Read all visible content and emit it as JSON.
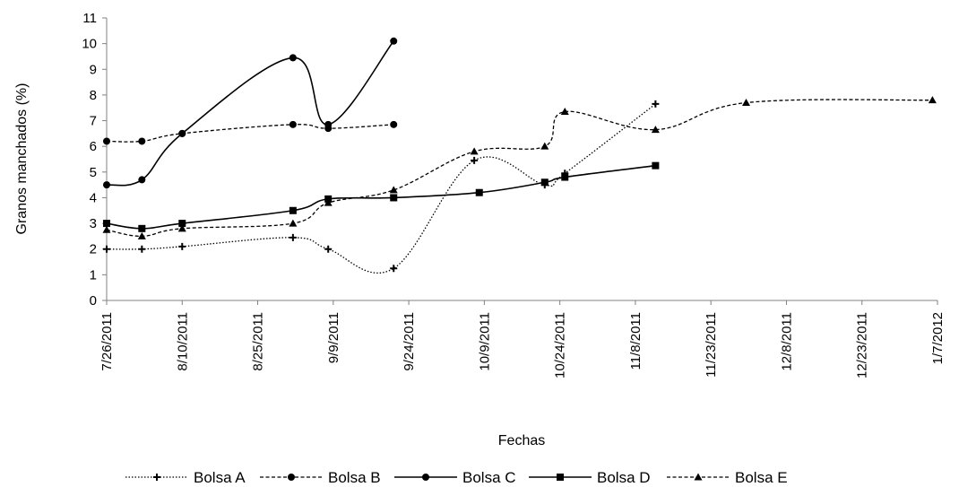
{
  "chart_data": {
    "type": "line",
    "title": "",
    "xlabel": "Fechas",
    "ylabel": "Granos manchados (%)",
    "x_type": "date",
    "xlim": [
      "2011-07-26",
      "2012-01-07"
    ],
    "ylim": [
      0,
      11
    ],
    "x_tick_values": [
      "2011-07-26",
      "2011-08-10",
      "2011-08-25",
      "2011-09-09",
      "2011-09-24",
      "2011-10-09",
      "2011-10-24",
      "2011-11-08",
      "2011-11-23",
      "2011-12-08",
      "2011-12-23",
      "2012-01-07"
    ],
    "x_tick_labels": [
      "7/26/2011",
      "8/10/2011",
      "8/25/2011",
      "9/9/2011",
      "9/24/2011",
      "10/9/2011",
      "10/24/2011",
      "11/8/2011",
      "11/23/2011",
      "12/8/2011",
      "12/23/2011",
      "1/7/2012"
    ],
    "y_ticks": [
      "0",
      "1",
      "2",
      "3",
      "4",
      "5",
      "6",
      "7",
      "8",
      "9",
      "10",
      "11"
    ],
    "grid": false,
    "legend_position": "bottom",
    "series": [
      {
        "name": "Bolsa A",
        "line_style": "dotted",
        "marker": "cross",
        "color": "#000000",
        "points": [
          {
            "x": "2011-07-26",
            "y": 2.0
          },
          {
            "x": "2011-08-02",
            "y": 2.0
          },
          {
            "x": "2011-08-10",
            "y": 2.1
          },
          {
            "x": "2011-09-01",
            "y": 2.45
          },
          {
            "x": "2011-09-08",
            "y": 2.0
          },
          {
            "x": "2011-09-21",
            "y": 1.25
          },
          {
            "x": "2011-10-07",
            "y": 5.45
          },
          {
            "x": "2011-10-21",
            "y": 4.5
          },
          {
            "x": "2011-10-25",
            "y": 4.95
          },
          {
            "x": "2011-11-12",
            "y": 7.65
          }
        ]
      },
      {
        "name": "Bolsa B",
        "line_style": "dashed",
        "marker": "circle",
        "color": "#000000",
        "points": [
          {
            "x": "2011-07-26",
            "y": 6.2
          },
          {
            "x": "2011-08-02",
            "y": 6.2
          },
          {
            "x": "2011-08-10",
            "y": 6.5
          },
          {
            "x": "2011-09-01",
            "y": 6.85
          },
          {
            "x": "2011-09-08",
            "y": 6.7
          },
          {
            "x": "2011-09-21",
            "y": 6.85
          }
        ]
      },
      {
        "name": "Bolsa C",
        "line_style": "solid",
        "marker": "circle",
        "color": "#000000",
        "points": [
          {
            "x": "2011-07-26",
            "y": 4.5
          },
          {
            "x": "2011-08-02",
            "y": 4.7
          },
          {
            "x": "2011-08-10",
            "y": 6.5
          },
          {
            "x": "2011-09-01",
            "y": 9.45
          },
          {
            "x": "2011-09-08",
            "y": 6.85
          },
          {
            "x": "2011-09-21",
            "y": 10.1
          }
        ]
      },
      {
        "name": "Bolsa D",
        "line_style": "solid",
        "marker": "square",
        "color": "#000000",
        "points": [
          {
            "x": "2011-07-26",
            "y": 3.0
          },
          {
            "x": "2011-08-02",
            "y": 2.8
          },
          {
            "x": "2011-08-10",
            "y": 3.0
          },
          {
            "x": "2011-09-01",
            "y": 3.5
          },
          {
            "x": "2011-09-08",
            "y": 3.95
          },
          {
            "x": "2011-09-21",
            "y": 4.0
          },
          {
            "x": "2011-10-08",
            "y": 4.2
          },
          {
            "x": "2011-10-21",
            "y": 4.6
          },
          {
            "x": "2011-10-25",
            "y": 4.8
          },
          {
            "x": "2011-11-12",
            "y": 5.25
          }
        ]
      },
      {
        "name": "Bolsa E",
        "line_style": "dashed",
        "marker": "triangle",
        "color": "#000000",
        "points": [
          {
            "x": "2011-07-26",
            "y": 2.75
          },
          {
            "x": "2011-08-02",
            "y": 2.5
          },
          {
            "x": "2011-08-10",
            "y": 2.8
          },
          {
            "x": "2011-09-01",
            "y": 3.0
          },
          {
            "x": "2011-09-08",
            "y": 3.8
          },
          {
            "x": "2011-09-21",
            "y": 4.3
          },
          {
            "x": "2011-10-07",
            "y": 5.8
          },
          {
            "x": "2011-10-21",
            "y": 6.0
          },
          {
            "x": "2011-10-25",
            "y": 7.35
          },
          {
            "x": "2011-11-12",
            "y": 6.65
          },
          {
            "x": "2011-11-30",
            "y": 7.7
          },
          {
            "x": "2012-01-06",
            "y": 7.8
          }
        ]
      }
    ]
  }
}
